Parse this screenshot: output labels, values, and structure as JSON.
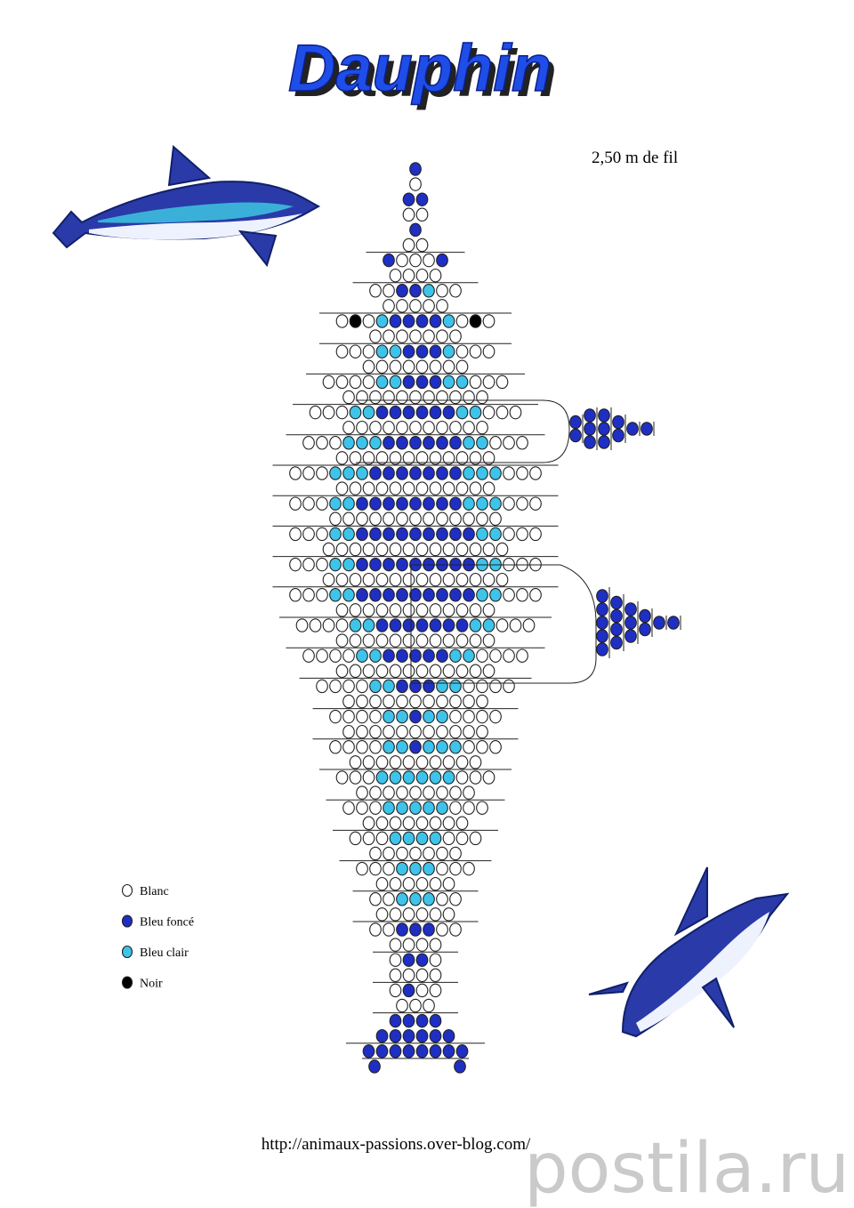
{
  "header": {
    "title": "Dauphin",
    "thread_note": "2,50 m de fil"
  },
  "legend": [
    {
      "label": "Blanc",
      "color": "#ffffff"
    },
    {
      "label": "Bleu foncé",
      "color": "#1f2fc4"
    },
    {
      "label": "Bleu clair",
      "color": "#3ec4ea"
    },
    {
      "label": "Noir",
      "color": "#000000"
    }
  ],
  "footer": {
    "url": "http://animaux-passions.over-blog.com/",
    "watermark": "postila.ru"
  }
}
